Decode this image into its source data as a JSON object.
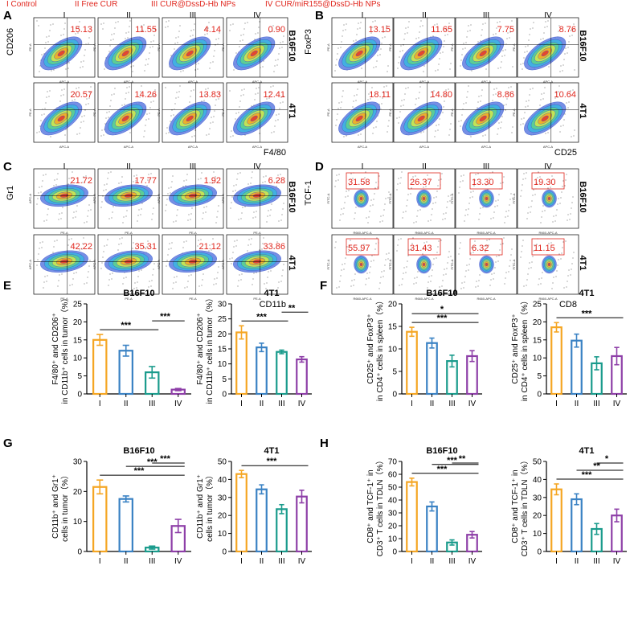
{
  "header": [
    {
      "text": "I Control"
    },
    {
      "text": "II Free CUR"
    },
    {
      "text": "III CUR@DssD-Hb NPs"
    },
    {
      "text": "IV CUR/miR155@DssD-Hb NPs"
    }
  ],
  "groups": [
    "I",
    "II",
    "III",
    "IV"
  ],
  "flow_panels": [
    {
      "label": "A",
      "y_marker": "CD206",
      "x_marker": "F4/80",
      "axis_x": "APC-A",
      "axis_y": "PE-A",
      "rows": [
        {
          "name": "B16F10",
          "values": [
            "15.13",
            "11.55",
            "4.14",
            "0.90"
          ]
        },
        {
          "name": "4T1",
          "values": [
            "20.57",
            "14.26",
            "13.83",
            "12.41"
          ]
        }
      ]
    },
    {
      "label": "B",
      "y_marker": "FoxP3",
      "x_marker": "CD25",
      "axis_x": "APC-A",
      "axis_y": "PE-A",
      "rows": [
        {
          "name": "B16F10",
          "values": [
            "13.15",
            "11.65",
            "7.75",
            "8.76"
          ]
        },
        {
          "name": "4T1",
          "values": [
            "18.11",
            "14.80",
            "8.86",
            "10.64"
          ]
        }
      ]
    },
    {
      "label": "C",
      "y_marker": "Gr1",
      "x_marker": "CD11b",
      "axis_x": "PE-A",
      "axis_y": "APC-A",
      "rows": [
        {
          "name": "B16F10",
          "values": [
            "21.72",
            "17.77",
            "1.92",
            "6.28"
          ]
        },
        {
          "name": "4T1",
          "values": [
            "42.22",
            "35.31",
            "21.12",
            "33.86"
          ]
        }
      ]
    },
    {
      "label": "D",
      "y_marker": "TCF-1",
      "x_marker": "CD8",
      "axis_x": "R660-APC-A",
      "axis_y": "FITC-A",
      "rows": [
        {
          "name": "B16F10",
          "values": [
            "31.58",
            "26.37",
            "13.30",
            "19.30"
          ]
        },
        {
          "name": "4T1",
          "values": [
            "55.97",
            "31.43",
            "6.32",
            "11.15"
          ]
        }
      ]
    }
  ],
  "chart_data": [
    {
      "type": "bar",
      "panel": "E",
      "title": "B16F10",
      "ylabel": [
        "F4/80⁺ and CD206⁺",
        "in CD11b⁺ cells in tumor（%）"
      ],
      "categories": [
        "I",
        "II",
        "III",
        "IV"
      ],
      "values": [
        15,
        12,
        6,
        1.2
      ],
      "errors": [
        1.5,
        1.5,
        1.6,
        0.3
      ],
      "ylim": [
        0,
        25
      ],
      "yticks": [
        0,
        5,
        10,
        15,
        20,
        25
      ],
      "significance": [
        {
          "from": 0,
          "to": 2,
          "label": "***"
        },
        {
          "from": 2,
          "to": 3,
          "label": "***"
        }
      ]
    },
    {
      "type": "bar",
      "panel": "E",
      "title": "4T1",
      "ylabel": [
        "F4/80⁺ and CD206⁺",
        "in CD11b⁺ cells in tumor（%）"
      ],
      "categories": [
        "I",
        "II",
        "III",
        "IV"
      ],
      "values": [
        20.5,
        15.5,
        14,
        11.5
      ],
      "errors": [
        2.2,
        1.4,
        0.6,
        0.9
      ],
      "ylim": [
        0,
        30
      ],
      "yticks": [
        0,
        5,
        10,
        15,
        20,
        25,
        30
      ],
      "significance": [
        {
          "from": 0,
          "to": 2,
          "label": "***"
        },
        {
          "from": 2,
          "to": 3,
          "label": "**"
        }
      ]
    },
    {
      "type": "bar",
      "panel": "F",
      "title": "B16F10",
      "ylabel": [
        "CD25⁺ and FoxP3⁺",
        "in CD4⁺ cells in spleen（%）"
      ],
      "categories": [
        "I",
        "II",
        "III",
        "IV"
      ],
      "values": [
        13.8,
        11.3,
        7.3,
        8.4
      ],
      "errors": [
        1.0,
        1.1,
        1.3,
        1.2
      ],
      "ylim": [
        0,
        20
      ],
      "yticks": [
        0,
        5,
        10,
        15,
        20
      ],
      "significance": [
        {
          "from": 0,
          "to": 3,
          "label": "***"
        },
        {
          "from": 0,
          "to": 3,
          "label": "*"
        }
      ]
    },
    {
      "type": "bar",
      "panel": "F",
      "title": "4T1",
      "ylabel": [
        "CD25⁺ and FoxP3⁺",
        "in CD4⁺ cells in spleen（%）"
      ],
      "categories": [
        "I",
        "II",
        "III",
        "IV"
      ],
      "values": [
        18.5,
        14.8,
        8.5,
        10.5
      ],
      "errors": [
        1.3,
        1.8,
        1.8,
        2.4
      ],
      "ylim": [
        0,
        25
      ],
      "yticks": [
        0,
        5,
        10,
        15,
        20,
        25
      ],
      "significance": [
        {
          "from": 0,
          "to": 3,
          "label": "***"
        }
      ]
    },
    {
      "type": "bar",
      "panel": "G",
      "title": "B16F10",
      "ylabel": [
        "CD11b⁺ and Gr1⁺",
        "cells in tumor（%）"
      ],
      "categories": [
        "I",
        "II",
        "III",
        "IV"
      ],
      "values": [
        21.5,
        17.5,
        1.3,
        8.5
      ],
      "errors": [
        2.3,
        1.0,
        0.5,
        2.2
      ],
      "ylim": [
        0,
        30
      ],
      "yticks": [
        0,
        10,
        20,
        30
      ],
      "significance": [
        {
          "from": 0,
          "to": 3,
          "label": "***"
        },
        {
          "from": 1,
          "to": 3,
          "label": "***"
        },
        {
          "from": 2,
          "to": 3,
          "label": "***"
        }
      ]
    },
    {
      "type": "bar",
      "panel": "G",
      "title": "4T1",
      "ylabel": [
        "CD11b⁺ and Gr1⁺",
        "cells in tumor（%）"
      ],
      "categories": [
        "I",
        "II",
        "III",
        "IV"
      ],
      "values": [
        43,
        34.5,
        23.5,
        30.5
      ],
      "errors": [
        2.0,
        2.5,
        2.5,
        3.5
      ],
      "ylim": [
        0,
        50
      ],
      "yticks": [
        0,
        10,
        20,
        30,
        40,
        50
      ],
      "significance": [
        {
          "from": 0,
          "to": 3,
          "label": "***"
        }
      ]
    },
    {
      "type": "bar",
      "panel": "H",
      "title": "B16F10",
      "ylabel": [
        "CD8⁺ and TCF-1⁺ in",
        "CD3⁺ T cells in TDLN（%）"
      ],
      "categories": [
        "I",
        "II",
        "III",
        "IV"
      ],
      "values": [
        54,
        35,
        7,
        13
      ],
      "errors": [
        3,
        3.5,
        2,
        2.5
      ],
      "ylim": [
        0,
        70
      ],
      "yticks": [
        0,
        10,
        20,
        30,
        40,
        50,
        60,
        70
      ],
      "significance": [
        {
          "from": 0,
          "to": 3,
          "label": "***"
        },
        {
          "from": 1,
          "to": 3,
          "label": "***"
        },
        {
          "from": 2,
          "to": 3,
          "label": "**"
        }
      ]
    },
    {
      "type": "bar",
      "panel": "H",
      "title": "4T1",
      "ylabel": [
        "CD8⁺ and TCF-1⁺ in",
        "CD3⁺ T cells in TDLN（%）"
      ],
      "categories": [
        "I",
        "II",
        "III",
        "IV"
      ],
      "values": [
        34.5,
        29,
        12.5,
        20
      ],
      "errors": [
        3,
        3,
        3,
        3.5
      ],
      "ylim": [
        0,
        50
      ],
      "yticks": [
        0,
        10,
        20,
        30,
        40,
        50
      ],
      "significance": [
        {
          "from": 0,
          "to": 3,
          "label": "***"
        },
        {
          "from": 1,
          "to": 3,
          "label": "**"
        },
        {
          "from": 2,
          "to": 3,
          "label": "*"
        }
      ]
    }
  ],
  "colors": {
    "I": "#f5a623",
    "II": "#3a82c4",
    "III": "#1a9b8c",
    "IV": "#8e3fa8",
    "accent": "#e0261d"
  }
}
